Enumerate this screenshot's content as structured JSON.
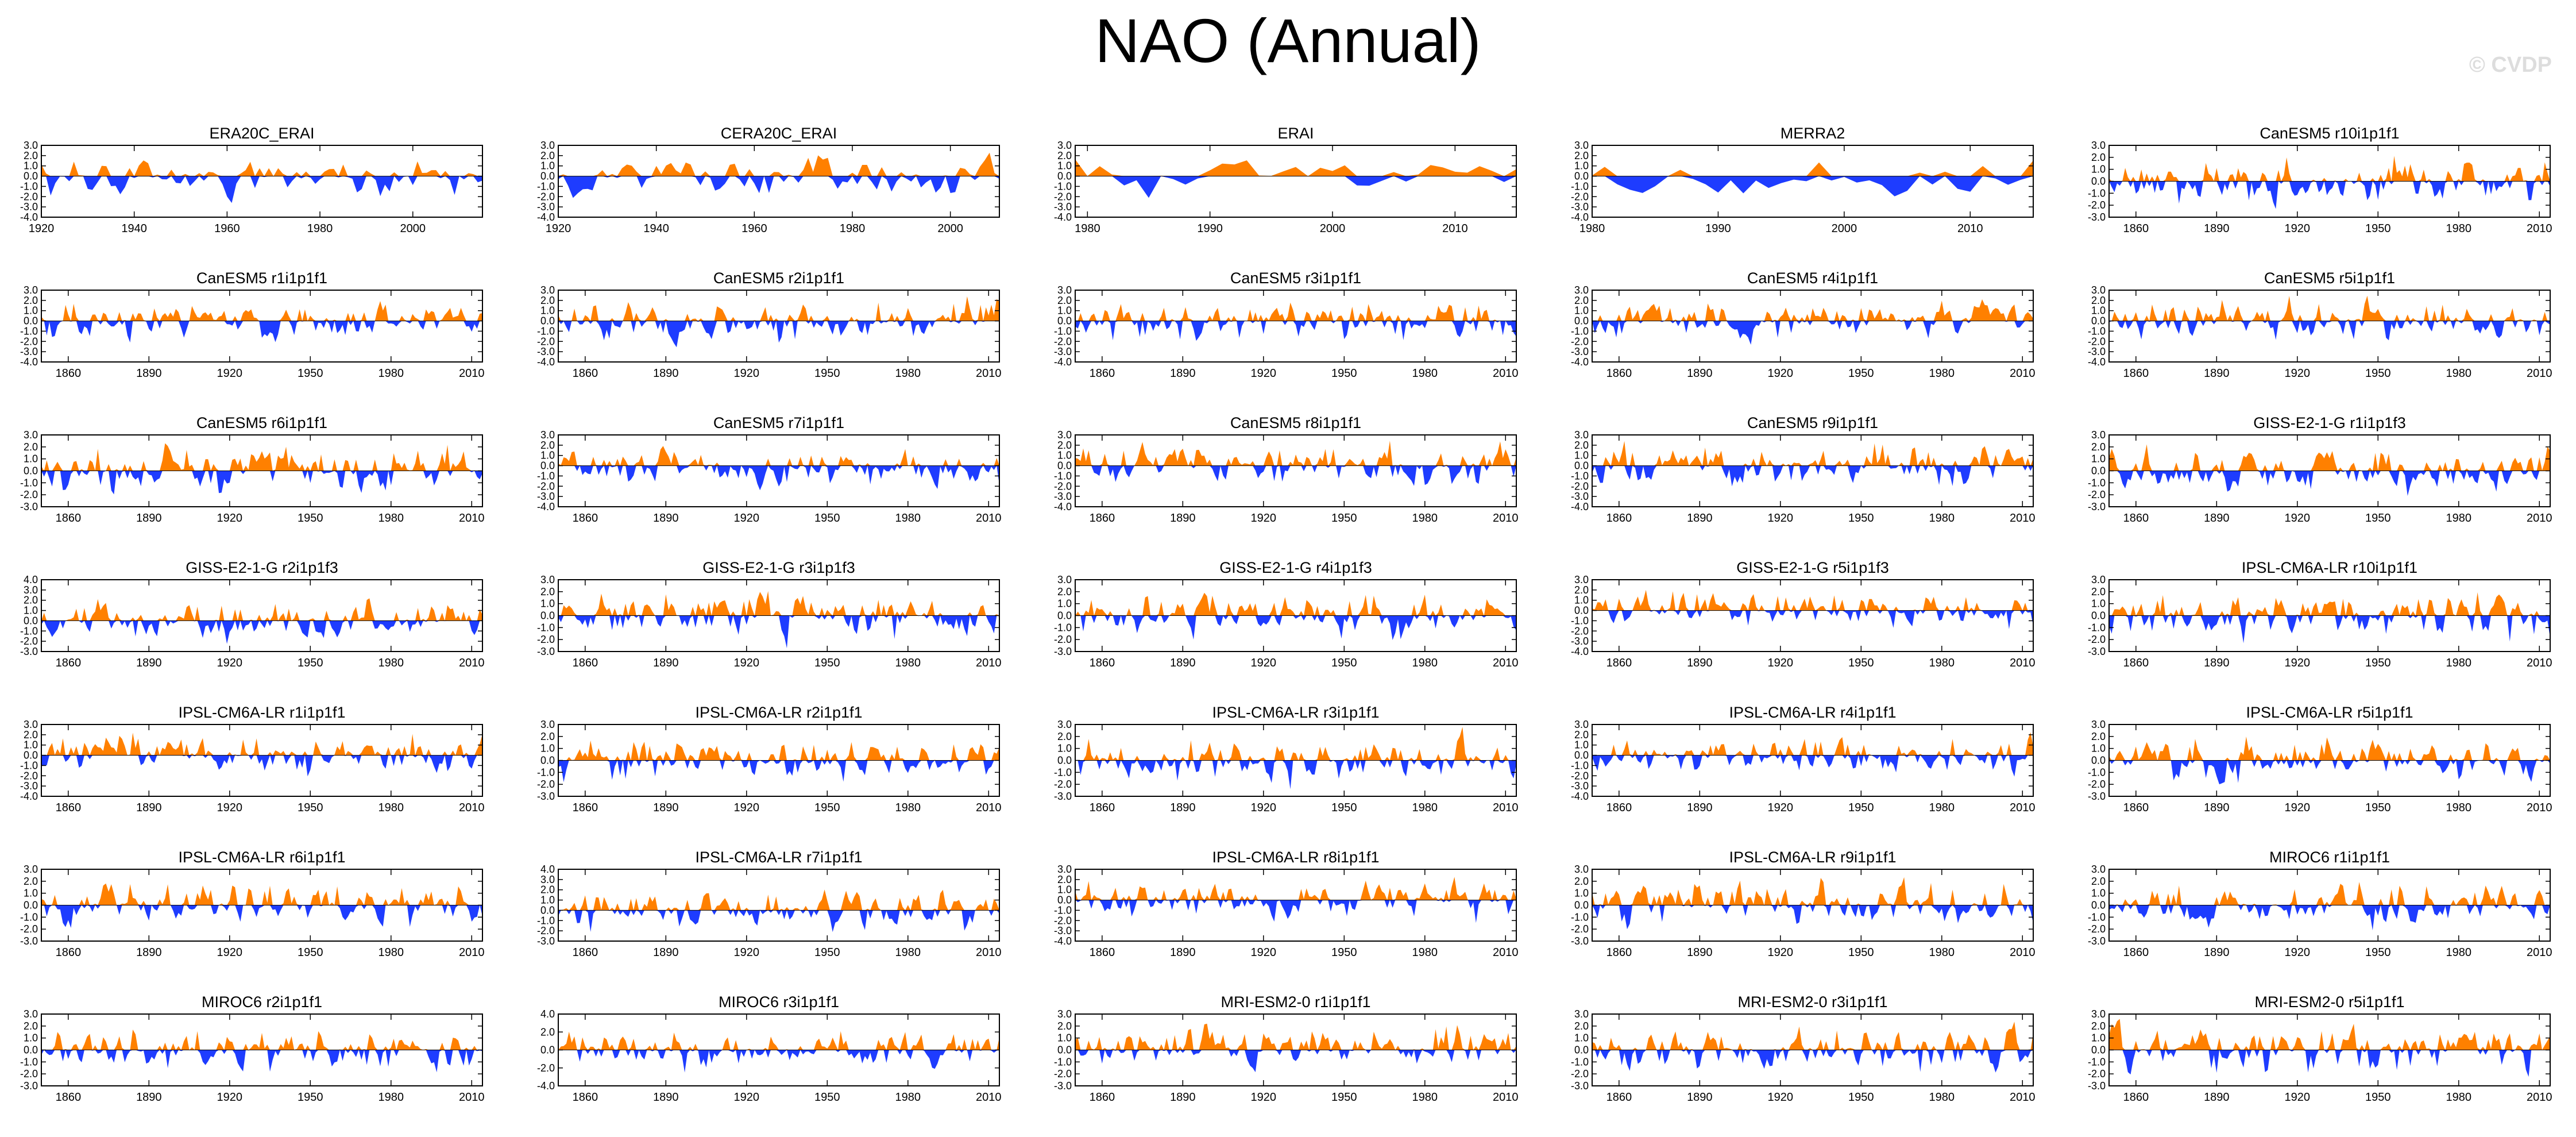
{
  "title": "NAO (Annual)",
  "watermark": "© CVDP",
  "colors": {
    "positive": "#ff8000",
    "negative": "#1e3cff",
    "axis": "#000000"
  },
  "chart_data": [
    {
      "type": "area",
      "title": "ERA20C_ERAI",
      "xlim": [
        1920,
        2015
      ],
      "xticks": [
        1920,
        1940,
        1960,
        1980,
        2000
      ],
      "ylim": [
        -4,
        3
      ],
      "yticks": [
        3,
        2,
        1,
        0,
        -1,
        -2,
        -3,
        -4
      ],
      "seed": 11,
      "amp": 1.0
    },
    {
      "type": "area",
      "title": "CERA20C_ERAI",
      "xlim": [
        1920,
        2010
      ],
      "xticks": [
        1920,
        1940,
        1960,
        1980,
        2000
      ],
      "ylim": [
        -4,
        3
      ],
      "yticks": [
        3,
        2,
        1,
        0,
        -1,
        -2,
        -3,
        -4
      ],
      "seed": 12,
      "amp": 1.0
    },
    {
      "type": "area",
      "title": "ERAI",
      "xlim": [
        1979,
        2015
      ],
      "xticks": [
        1980,
        1990,
        2000,
        2010
      ],
      "ylim": [
        -4,
        3
      ],
      "yticks": [
        3,
        2,
        1,
        0,
        -1,
        -2,
        -3,
        -4
      ],
      "seed": 13,
      "amp": 1.1
    },
    {
      "type": "area",
      "title": "MERRA2",
      "xlim": [
        1980,
        2015
      ],
      "xticks": [
        1980,
        1990,
        2000,
        2010
      ],
      "ylim": [
        -4,
        3
      ],
      "yticks": [
        3,
        2,
        1,
        0,
        -1,
        -2,
        -3,
        -4
      ],
      "seed": 14,
      "amp": 1.1
    },
    {
      "type": "area",
      "title": "CanESM5 r10i1p1f1",
      "xlim": [
        1850,
        2014
      ],
      "xticks": [
        1860,
        1890,
        1920,
        1950,
        1980,
        2010
      ],
      "ylim": [
        -3,
        3
      ],
      "yticks": [
        3,
        2,
        1,
        0,
        -1,
        -2,
        -3
      ],
      "seed": 15,
      "amp": 1.0
    },
    {
      "type": "area",
      "title": "CanESM5 r1i1p1f1",
      "xlim": [
        1850,
        2014
      ],
      "xticks": [
        1860,
        1890,
        1920,
        1950,
        1980,
        2010
      ],
      "ylim": [
        -4,
        3
      ],
      "yticks": [
        3,
        2,
        1,
        0,
        -1,
        -2,
        -3,
        -4
      ],
      "seed": 21,
      "amp": 1.0
    },
    {
      "type": "area",
      "title": "CanESM5 r2i1p1f1",
      "xlim": [
        1850,
        2014
      ],
      "xticks": [
        1860,
        1890,
        1920,
        1950,
        1980,
        2010
      ],
      "ylim": [
        -4,
        3
      ],
      "yticks": [
        3,
        2,
        1,
        0,
        -1,
        -2,
        -3,
        -4
      ],
      "seed": 22,
      "amp": 1.0
    },
    {
      "type": "area",
      "title": "CanESM5 r3i1p1f1",
      "xlim": [
        1850,
        2014
      ],
      "xticks": [
        1860,
        1890,
        1920,
        1950,
        1980,
        2010
      ],
      "ylim": [
        -4,
        3
      ],
      "yticks": [
        3,
        2,
        1,
        0,
        -1,
        -2,
        -3,
        -4
      ],
      "seed": 23,
      "amp": 1.1
    },
    {
      "type": "area",
      "title": "CanESM5 r4i1p1f1",
      "xlim": [
        1850,
        2014
      ],
      "xticks": [
        1860,
        1890,
        1920,
        1950,
        1980,
        2010
      ],
      "ylim": [
        -4,
        3
      ],
      "yticks": [
        3,
        2,
        1,
        0,
        -1,
        -2,
        -3,
        -4
      ],
      "seed": 24,
      "amp": 1.0
    },
    {
      "type": "area",
      "title": "CanESM5 r5i1p1f1",
      "xlim": [
        1850,
        2014
      ],
      "xticks": [
        1860,
        1890,
        1920,
        1950,
        1980,
        2010
      ],
      "ylim": [
        -4,
        3
      ],
      "yticks": [
        3,
        2,
        1,
        0,
        -1,
        -2,
        -3,
        -4
      ],
      "seed": 25,
      "amp": 1.0
    },
    {
      "type": "area",
      "title": "CanESM5 r6i1p1f1",
      "xlim": [
        1850,
        2014
      ],
      "xticks": [
        1860,
        1890,
        1920,
        1950,
        1980,
        2010
      ],
      "ylim": [
        -3,
        3
      ],
      "yticks": [
        3,
        2,
        1,
        0,
        -1,
        -2,
        -3
      ],
      "seed": 31,
      "amp": 1.0
    },
    {
      "type": "area",
      "title": "CanESM5 r7i1p1f1",
      "xlim": [
        1850,
        2014
      ],
      "xticks": [
        1860,
        1890,
        1920,
        1950,
        1980,
        2010
      ],
      "ylim": [
        -4,
        3
      ],
      "yticks": [
        3,
        2,
        1,
        0,
        -1,
        -2,
        -3,
        -4
      ],
      "seed": 32,
      "amp": 1.0
    },
    {
      "type": "area",
      "title": "CanESM5 r8i1p1f1",
      "xlim": [
        1850,
        2014
      ],
      "xticks": [
        1860,
        1890,
        1920,
        1950,
        1980,
        2010
      ],
      "ylim": [
        -4,
        3
      ],
      "yticks": [
        3,
        2,
        1,
        0,
        -1,
        -2,
        -3,
        -4
      ],
      "seed": 33,
      "amp": 1.0
    },
    {
      "type": "area",
      "title": "CanESM5 r9i1p1f1",
      "xlim": [
        1850,
        2014
      ],
      "xticks": [
        1860,
        1890,
        1920,
        1950,
        1980,
        2010
      ],
      "ylim": [
        -4,
        3
      ],
      "yticks": [
        3,
        2,
        1,
        0,
        -1,
        -2,
        -3,
        -4
      ],
      "seed": 34,
      "amp": 1.0
    },
    {
      "type": "area",
      "title": "GISS-E2-1-G r1i1p1f3",
      "xlim": [
        1850,
        2014
      ],
      "xticks": [
        1860,
        1890,
        1920,
        1950,
        1980,
        2010
      ],
      "ylim": [
        -3,
        3
      ],
      "yticks": [
        3,
        2,
        1,
        0,
        -1,
        -2,
        -3
      ],
      "seed": 35,
      "amp": 1.0
    },
    {
      "type": "area",
      "title": "GISS-E2-1-G r2i1p1f3",
      "xlim": [
        1850,
        2014
      ],
      "xticks": [
        1860,
        1890,
        1920,
        1950,
        1980,
        2010
      ],
      "ylim": [
        -3,
        4
      ],
      "yticks": [
        4,
        3,
        2,
        1,
        0,
        -1,
        -2,
        -3
      ],
      "seed": 41,
      "amp": 1.0
    },
    {
      "type": "area",
      "title": "GISS-E2-1-G r3i1p1f3",
      "xlim": [
        1850,
        2014
      ],
      "xticks": [
        1860,
        1890,
        1920,
        1950,
        1980,
        2010
      ],
      "ylim": [
        -3,
        3
      ],
      "yticks": [
        3,
        2,
        1,
        0,
        -1,
        -2,
        -3
      ],
      "seed": 42,
      "amp": 1.0
    },
    {
      "type": "area",
      "title": "GISS-E2-1-G r4i1p1f3",
      "xlim": [
        1850,
        2014
      ],
      "xticks": [
        1860,
        1890,
        1920,
        1950,
        1980,
        2010
      ],
      "ylim": [
        -3,
        3
      ],
      "yticks": [
        3,
        2,
        1,
        0,
        -1,
        -2,
        -3
      ],
      "seed": 43,
      "amp": 1.0
    },
    {
      "type": "area",
      "title": "GISS-E2-1-G r5i1p1f3",
      "xlim": [
        1850,
        2014
      ],
      "xticks": [
        1860,
        1890,
        1920,
        1950,
        1980,
        2010
      ],
      "ylim": [
        -4,
        3
      ],
      "yticks": [
        3,
        2,
        1,
        0,
        -1,
        -2,
        -3,
        -4
      ],
      "seed": 44,
      "amp": 1.0
    },
    {
      "type": "area",
      "title": "IPSL-CM6A-LR r10i1p1f1",
      "xlim": [
        1850,
        2014
      ],
      "xticks": [
        1860,
        1890,
        1920,
        1950,
        1980,
        2010
      ],
      "ylim": [
        -3,
        3
      ],
      "yticks": [
        3,
        2,
        1,
        0,
        -1,
        -2,
        -3
      ],
      "seed": 45,
      "amp": 1.0
    },
    {
      "type": "area",
      "title": "IPSL-CM6A-LR r1i1p1f1",
      "xlim": [
        1850,
        2014
      ],
      "xticks": [
        1860,
        1890,
        1920,
        1950,
        1980,
        2010
      ],
      "ylim": [
        -4,
        3
      ],
      "yticks": [
        3,
        2,
        1,
        0,
        -1,
        -2,
        -3,
        -4
      ],
      "seed": 51,
      "amp": 1.0
    },
    {
      "type": "area",
      "title": "IPSL-CM6A-LR r2i1p1f1",
      "xlim": [
        1850,
        2014
      ],
      "xticks": [
        1860,
        1890,
        1920,
        1950,
        1980,
        2010
      ],
      "ylim": [
        -3,
        3
      ],
      "yticks": [
        3,
        2,
        1,
        0,
        -1,
        -2,
        -3
      ],
      "seed": 52,
      "amp": 1.0
    },
    {
      "type": "area",
      "title": "IPSL-CM6A-LR r3i1p1f1",
      "xlim": [
        1850,
        2014
      ],
      "xticks": [
        1860,
        1890,
        1920,
        1950,
        1980,
        2010
      ],
      "ylim": [
        -3,
        3
      ],
      "yticks": [
        3,
        2,
        1,
        0,
        -1,
        -2,
        -3
      ],
      "seed": 53,
      "amp": 1.0
    },
    {
      "type": "area",
      "title": "IPSL-CM6A-LR r4i1p1f1",
      "xlim": [
        1850,
        2014
      ],
      "xticks": [
        1860,
        1890,
        1920,
        1950,
        1980,
        2010
      ],
      "ylim": [
        -4,
        3
      ],
      "yticks": [
        3,
        2,
        1,
        0,
        -1,
        -2,
        -3,
        -4
      ],
      "seed": 54,
      "amp": 1.0
    },
    {
      "type": "area",
      "title": "IPSL-CM6A-LR r5i1p1f1",
      "xlim": [
        1850,
        2014
      ],
      "xticks": [
        1860,
        1890,
        1920,
        1950,
        1980,
        2010
      ],
      "ylim": [
        -3,
        3
      ],
      "yticks": [
        3,
        2,
        1,
        0,
        -1,
        -2,
        -3
      ],
      "seed": 55,
      "amp": 1.0
    },
    {
      "type": "area",
      "title": "IPSL-CM6A-LR r6i1p1f1",
      "xlim": [
        1850,
        2014
      ],
      "xticks": [
        1860,
        1890,
        1920,
        1950,
        1980,
        2010
      ],
      "ylim": [
        -3,
        3
      ],
      "yticks": [
        3,
        2,
        1,
        0,
        -1,
        -2,
        -3
      ],
      "seed": 61,
      "amp": 1.0
    },
    {
      "type": "area",
      "title": "IPSL-CM6A-LR r7i1p1f1",
      "xlim": [
        1850,
        2014
      ],
      "xticks": [
        1860,
        1890,
        1920,
        1950,
        1980,
        2010
      ],
      "ylim": [
        -3,
        4
      ],
      "yticks": [
        4,
        3,
        2,
        1,
        0,
        -1,
        -2,
        -3
      ],
      "seed": 62,
      "amp": 1.0
    },
    {
      "type": "area",
      "title": "IPSL-CM6A-LR r8i1p1f1",
      "xlim": [
        1850,
        2014
      ],
      "xticks": [
        1860,
        1890,
        1920,
        1950,
        1980,
        2010
      ],
      "ylim": [
        -4,
        3
      ],
      "yticks": [
        3,
        2,
        1,
        0,
        -1,
        -2,
        -3,
        -4
      ],
      "seed": 63,
      "amp": 1.0
    },
    {
      "type": "area",
      "title": "IPSL-CM6A-LR r9i1p1f1",
      "xlim": [
        1850,
        2014
      ],
      "xticks": [
        1860,
        1890,
        1920,
        1950,
        1980,
        2010
      ],
      "ylim": [
        -3,
        3
      ],
      "yticks": [
        3,
        2,
        1,
        0,
        -1,
        -2,
        -3
      ],
      "seed": 64,
      "amp": 1.0
    },
    {
      "type": "area",
      "title": "MIROC6 r1i1p1f1",
      "xlim": [
        1850,
        2014
      ],
      "xticks": [
        1860,
        1890,
        1920,
        1950,
        1980,
        2010
      ],
      "ylim": [
        -3,
        3
      ],
      "yticks": [
        3,
        2,
        1,
        0,
        -1,
        -2,
        -3
      ],
      "seed": 65,
      "amp": 1.0
    },
    {
      "type": "area",
      "title": "MIROC6 r2i1p1f1",
      "xlim": [
        1850,
        2014
      ],
      "xticks": [
        1860,
        1890,
        1920,
        1950,
        1980,
        2010
      ],
      "ylim": [
        -3,
        3
      ],
      "yticks": [
        3,
        2,
        1,
        0,
        -1,
        -2,
        -3
      ],
      "seed": 71,
      "amp": 1.0
    },
    {
      "type": "area",
      "title": "MIROC6 r3i1p1f1",
      "xlim": [
        1850,
        2014
      ],
      "xticks": [
        1860,
        1890,
        1920,
        1950,
        1980,
        2010
      ],
      "ylim": [
        -4,
        4
      ],
      "yticks": [
        4,
        2,
        0,
        -2,
        -4
      ],
      "seed": 72,
      "amp": 1.1
    },
    {
      "type": "area",
      "title": "MRI-ESM2-0 r1i1p1f1",
      "xlim": [
        1850,
        2014
      ],
      "xticks": [
        1860,
        1890,
        1920,
        1950,
        1980,
        2010
      ],
      "ylim": [
        -3,
        3
      ],
      "yticks": [
        3,
        2,
        1,
        0,
        -1,
        -2,
        -3
      ],
      "seed": 73,
      "amp": 1.0
    },
    {
      "type": "area",
      "title": "MRI-ESM2-0 r3i1p1f1",
      "xlim": [
        1850,
        2014
      ],
      "xticks": [
        1860,
        1890,
        1920,
        1950,
        1980,
        2010
      ],
      "ylim": [
        -3,
        3
      ],
      "yticks": [
        3,
        2,
        1,
        0,
        -1,
        -2,
        -3
      ],
      "seed": 74,
      "amp": 1.0
    },
    {
      "type": "area",
      "title": "MRI-ESM2-0 r5i1p1f1",
      "xlim": [
        1850,
        2014
      ],
      "xticks": [
        1860,
        1890,
        1920,
        1950,
        1980,
        2010
      ],
      "ylim": [
        -3,
        3
      ],
      "yticks": [
        3,
        2,
        1,
        0,
        -1,
        -2,
        -3
      ],
      "seed": 75,
      "amp": 1.0
    }
  ]
}
